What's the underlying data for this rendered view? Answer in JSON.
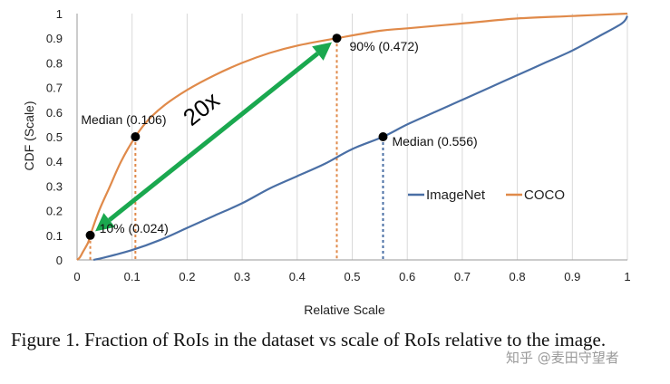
{
  "chart_data": {
    "type": "line",
    "xlabel": "Relative Scale",
    "ylabel": "CDF (Scale)",
    "xlim": [
      0,
      1
    ],
    "ylim": [
      0,
      1
    ],
    "x_ticks": [
      "0",
      "0.1",
      "0.2",
      "0.3",
      "0.4",
      "0.5",
      "0.6",
      "0.7",
      "0.8",
      "0.9",
      "1"
    ],
    "y_ticks": [
      "0",
      "0.1",
      "0.2",
      "0.3",
      "0.4",
      "0.5",
      "0.6",
      "0.7",
      "0.8",
      "0.9",
      "1"
    ],
    "grid": "vertical",
    "legend_position": "center-right",
    "series": [
      {
        "name": "ImageNet",
        "color": "#4a6fa5",
        "x": [
          0.03,
          0.05,
          0.1,
          0.15,
          0.2,
          0.25,
          0.3,
          0.35,
          0.4,
          0.45,
          0.5,
          0.556,
          0.6,
          0.65,
          0.7,
          0.75,
          0.8,
          0.85,
          0.9,
          0.95,
          0.99,
          1.0
        ],
        "y": [
          0.0,
          0.01,
          0.04,
          0.08,
          0.13,
          0.18,
          0.23,
          0.29,
          0.34,
          0.39,
          0.45,
          0.5,
          0.55,
          0.6,
          0.65,
          0.7,
          0.75,
          0.8,
          0.85,
          0.91,
          0.96,
          0.99
        ]
      },
      {
        "name": "COCO",
        "color": "#e08a4a",
        "x": [
          0.0,
          0.005,
          0.01,
          0.02,
          0.024,
          0.04,
          0.06,
          0.08,
          0.106,
          0.13,
          0.16,
          0.2,
          0.25,
          0.3,
          0.35,
          0.4,
          0.472,
          0.55,
          0.6,
          0.7,
          0.8,
          0.9,
          1.0
        ],
        "y": [
          0.0,
          0.01,
          0.03,
          0.07,
          0.1,
          0.2,
          0.3,
          0.4,
          0.5,
          0.57,
          0.63,
          0.69,
          0.75,
          0.8,
          0.84,
          0.87,
          0.9,
          0.93,
          0.94,
          0.96,
          0.98,
          0.99,
          1.0
        ]
      }
    ],
    "markers": [
      {
        "x": 0.024,
        "y": 0.1,
        "label": "10% (0.024)",
        "color": "#e08a4a"
      },
      {
        "x": 0.106,
        "y": 0.5,
        "label": "Median (0.106)",
        "color": "#e08a4a"
      },
      {
        "x": 0.472,
        "y": 0.9,
        "label": "90% (0.472)",
        "color": "#e08a4a"
      },
      {
        "x": 0.556,
        "y": 0.5,
        "label": "Median (0.556)",
        "color": "#4a6fa5"
      }
    ],
    "arrow": {
      "from": {
        "x": 0.024,
        "y": 0.1
      },
      "to": {
        "x": 0.472,
        "y": 0.9
      },
      "label": "20x",
      "color": "#1aa84f"
    }
  },
  "caption": "Figure 1. Fraction of RoIs in the dataset vs scale of RoIs relative to the image.",
  "watermark": "知乎 @麦田守望者"
}
